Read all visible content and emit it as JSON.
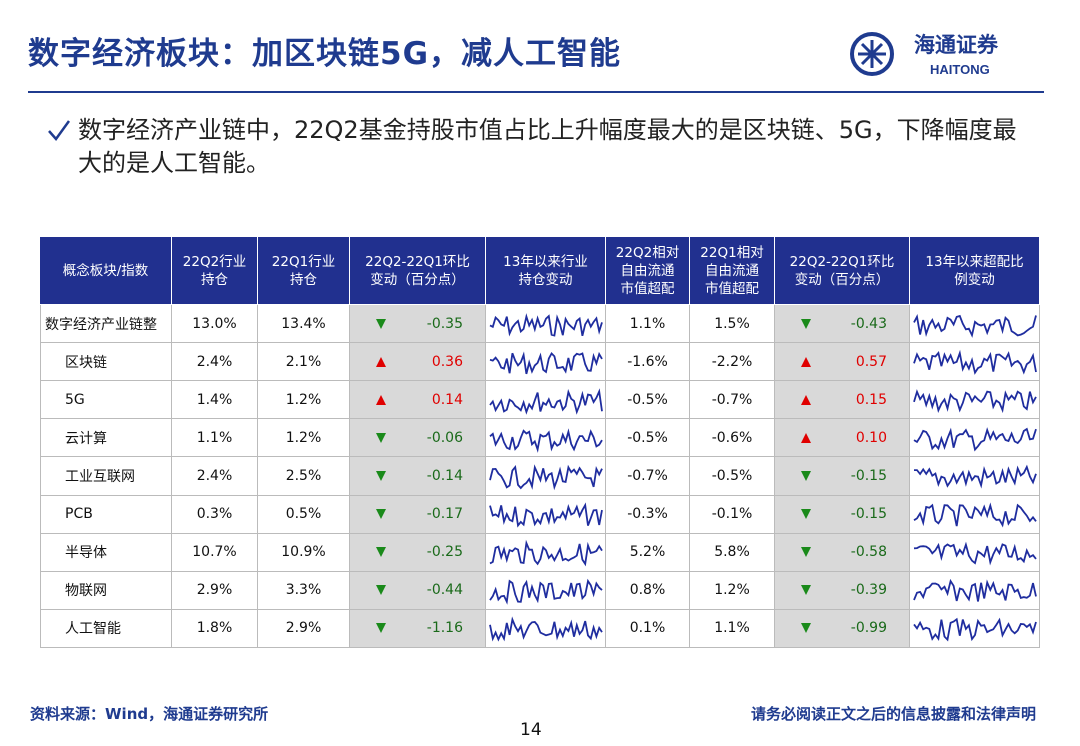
{
  "header": {
    "title": "数字经济板块：加区块链5G，减人工智能",
    "logo_cn": "海通证券",
    "logo_en": "HAITONG"
  },
  "bullet": "数字经济产业链中，22Q2基金持股市值占比上升幅度最大的是区块链、5G，下降幅度最大的是人工智能。",
  "table": {
    "columns": [
      "概念板块/指数",
      "22Q2行业\n持仓",
      "22Q1行业\n持仓",
      "22Q2-22Q1环比\n变动（百分点）",
      "13年以来行业\n持仓变动",
      "22Q2相对\n自由流通\n市值超配",
      "22Q1相对\n自由流通\n市值超配",
      "22Q2-22Q1环比\n变动（百分点）",
      "13年以来超配比\n例变动"
    ],
    "rows": [
      [
        "数字经济产业链整",
        "13.0%",
        "13.4%",
        "-0.35",
        "1.1%",
        "1.5%",
        "-0.43"
      ],
      [
        "区块链",
        "2.4%",
        "2.1%",
        "0.36",
        "-1.6%",
        "-2.2%",
        "0.57"
      ],
      [
        "5G",
        "1.4%",
        "1.2%",
        "0.14",
        "-0.5%",
        "-0.7%",
        "0.15"
      ],
      [
        "云计算",
        "1.1%",
        "1.2%",
        "-0.06",
        "-0.5%",
        "-0.6%",
        "0.10"
      ],
      [
        "工业互联网",
        "2.4%",
        "2.5%",
        "-0.14",
        "-0.7%",
        "-0.5%",
        "-0.15"
      ],
      [
        "PCB",
        "0.3%",
        "0.5%",
        "-0.17",
        "-0.3%",
        "-0.1%",
        "-0.15"
      ],
      [
        "半导体",
        "10.7%",
        "10.9%",
        "-0.25",
        "5.2%",
        "5.8%",
        "-0.58"
      ],
      [
        "物联网",
        "2.9%",
        "3.3%",
        "-0.44",
        "0.8%",
        "1.2%",
        "-0.39"
      ],
      [
        "人工智能",
        "1.8%",
        "2.9%",
        "-1.16",
        "0.1%",
        "1.1%",
        "-0.99"
      ]
    ]
  },
  "footer": {
    "source": "资料来源：Wind，海通证券研究所",
    "page": "14",
    "disclaimer": "请务必阅读正文之后的信息披露和法律声明"
  }
}
